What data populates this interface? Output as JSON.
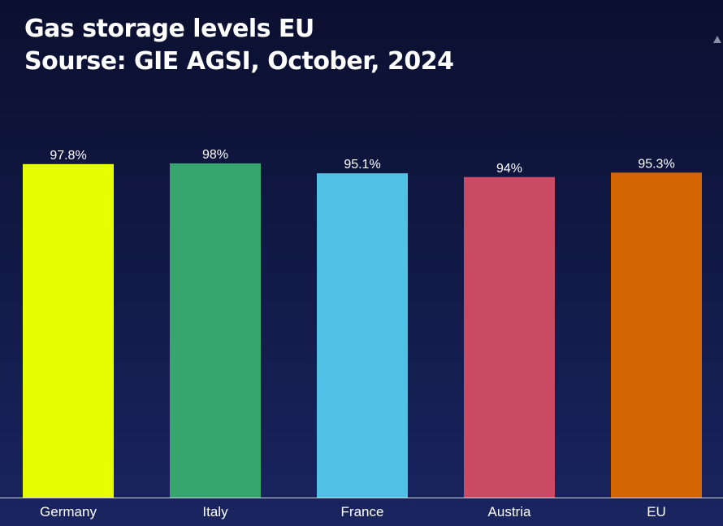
{
  "title": {
    "line1": "Gas storage levels EU",
    "line2": "Sourse: GIE AGSI, October, 2024"
  },
  "chart_data": {
    "type": "bar",
    "categories": [
      "Germany",
      "Italy",
      "France",
      "Austria",
      "EU"
    ],
    "values": [
      97.8,
      98,
      95.1,
      94,
      95.3
    ],
    "value_labels": [
      "97.8%",
      "98%",
      "95.1%",
      "94%",
      "95.3%"
    ],
    "colors": [
      "#e6ff00",
      "#36a66e",
      "#4fc1e5",
      "#c94a62",
      "#d46600"
    ],
    "ylim": [
      0,
      98
    ],
    "grid": false,
    "legend": "none"
  }
}
